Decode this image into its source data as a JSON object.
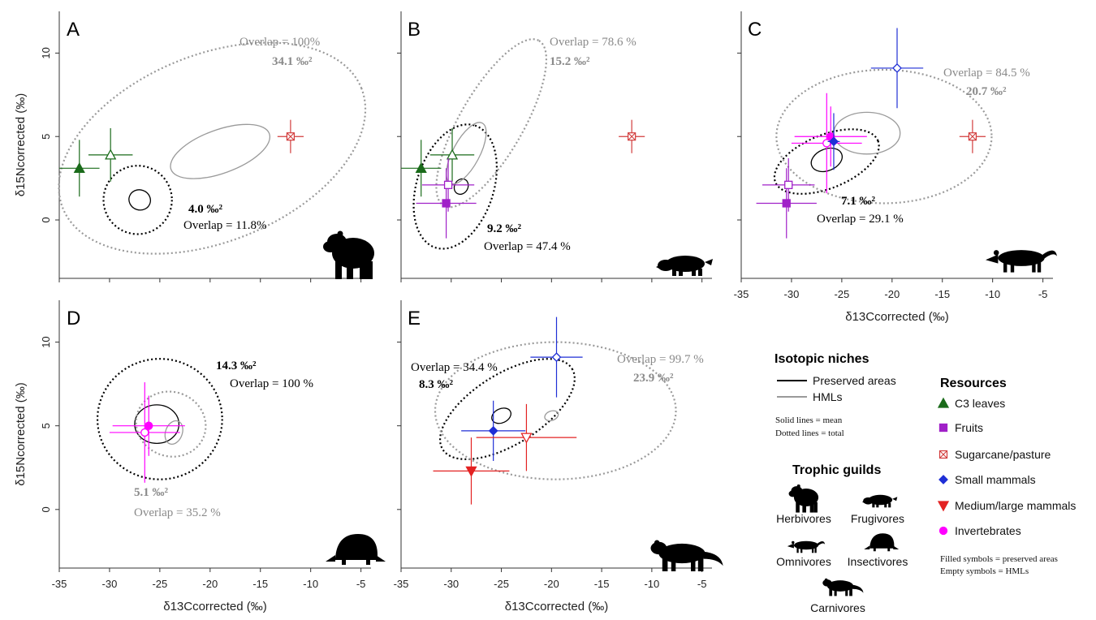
{
  "colors": {
    "c3": "#1a6b1a",
    "fruit": "#a020c8",
    "sugar": "#d23c3c",
    "small": "#1f2fd6",
    "medlarge": "#e32222",
    "invert": "#ff00ff",
    "preserved": "#000000",
    "hml": "#9a9a9a"
  },
  "axes": {
    "x_label": "δ13Ccorrected (‰)",
    "y_label": "δ15Ncorrected (‰)",
    "x_ticks": [
      "-35",
      "-30",
      "-25",
      "-20",
      "-15",
      "-10",
      "-5"
    ],
    "y_ticks": [
      "0",
      "5",
      "10"
    ],
    "xlim": [
      -35,
      -4
    ],
    "ylim": [
      -3.5,
      12.5
    ]
  },
  "chart_data": [
    {
      "type": "scatter",
      "panel": "A",
      "points": [
        {
          "resource": "c3",
          "group": "preserved",
          "x": -33,
          "y": 3.1,
          "xerr": 2,
          "yerr": 1.7
        },
        {
          "resource": "c3",
          "group": "hml",
          "x": -29.9,
          "y": 3.9,
          "xerr": 2.2,
          "yerr": 1.6
        },
        {
          "resource": "sugar",
          "group": "hml",
          "x": -12,
          "y": 5.0,
          "xerr": 1.3,
          "yerr": 1.0
        }
      ],
      "ellipses": [
        {
          "group": "preserved",
          "kind": "mean",
          "cx": -27,
          "cy": 1.2,
          "rx": 1.0,
          "ry": 0.65,
          "rot": 70
        },
        {
          "group": "preserved",
          "kind": "total",
          "cx": -27.2,
          "cy": 1.2,
          "rx": 3.4,
          "ry": 2.05,
          "rot": 0
        },
        {
          "group": "hml",
          "kind": "mean",
          "cx": -19,
          "cy": 4.1,
          "rx": 5.2,
          "ry": 1.3,
          "rot": 20
        },
        {
          "group": "hml",
          "kind": "total",
          "cx": -19.8,
          "cy": 4.3,
          "rx": 16,
          "ry": 5.6,
          "rot": 22
        }
      ],
      "annotations": {
        "hml_area": "34.1 ‰²",
        "hml_overlap": "Overlap = 100%",
        "pres_area": "4.0 ‰²",
        "pres_overlap": "Overlap = 11.8%"
      }
    },
    {
      "type": "scatter",
      "panel": "B",
      "points": [
        {
          "resource": "c3",
          "group": "preserved",
          "x": -33,
          "y": 3.1,
          "xerr": 2,
          "yerr": 1.7
        },
        {
          "resource": "c3",
          "group": "hml",
          "x": -29.9,
          "y": 3.9,
          "xerr": 2.2,
          "yerr": 1.6
        },
        {
          "resource": "fruit",
          "group": "preserved",
          "x": -30.5,
          "y": 1.0,
          "xerr": 3.0,
          "yerr": 2.1
        },
        {
          "resource": "fruit",
          "group": "hml",
          "x": -30.3,
          "y": 2.1,
          "xerr": 2.6,
          "yerr": 1.6
        },
        {
          "resource": "sugar",
          "group": "hml",
          "x": -12,
          "y": 5.0,
          "xerr": 1.3,
          "yerr": 1.0
        }
      ],
      "ellipses": [
        {
          "group": "preserved",
          "kind": "mean",
          "cx": -29,
          "cy": 2.0,
          "rx": 0.8,
          "ry": 0.4,
          "rot": 60
        },
        {
          "group": "preserved",
          "kind": "total",
          "cx": -29.6,
          "cy": 2.0,
          "rx": 6.4,
          "ry": 2.3,
          "rot": 72
        },
        {
          "group": "hml",
          "kind": "mean",
          "cx": -28.5,
          "cy": 4.0,
          "rx": 3.4,
          "ry": 0.8,
          "rot": 62
        },
        {
          "group": "hml",
          "kind": "total",
          "cx": -26,
          "cy": 5.8,
          "rx": 9.5,
          "ry": 1.9,
          "rot": 60
        }
      ],
      "annotations": {
        "hml_area": "15.2 ‰²",
        "hml_overlap": "Overlap = 78.6 %",
        "pres_area": "9.2 ‰²",
        "pres_overlap": "Overlap = 47.4 %"
      }
    },
    {
      "type": "scatter",
      "panel": "C",
      "points": [
        {
          "resource": "fruit",
          "group": "preserved",
          "x": -30.5,
          "y": 1.0,
          "xerr": 3.0,
          "yerr": 2.1
        },
        {
          "resource": "fruit",
          "group": "hml",
          "x": -30.3,
          "y": 2.1,
          "xerr": 2.6,
          "yerr": 1.6
        },
        {
          "resource": "invert",
          "group": "hml",
          "x": -26.5,
          "y": 4.6,
          "xerr": 3.5,
          "yerr": 3.0
        },
        {
          "resource": "invert",
          "group": "preserved",
          "x": -26.1,
          "y": 5.0,
          "xerr": 3.6,
          "yerr": 1.8
        },
        {
          "resource": "small",
          "group": "preserved",
          "x": -25.8,
          "y": 4.7,
          "xerr": 0.6,
          "yerr": 1.7
        },
        {
          "resource": "small",
          "group": "hml",
          "x": -19.5,
          "y": 9.1,
          "xerr": 2.6,
          "yerr": 2.4
        },
        {
          "resource": "sugar",
          "group": "hml",
          "x": -12,
          "y": 5.0,
          "xerr": 1.3,
          "yerr": 1.0
        }
      ],
      "ellipses": [
        {
          "group": "preserved",
          "kind": "mean",
          "cx": -26.5,
          "cy": 3.6,
          "rx": 1.6,
          "ry": 0.65,
          "rot": 22
        },
        {
          "group": "preserved",
          "kind": "total",
          "cx": -26.5,
          "cy": 3.5,
          "rx": 5.5,
          "ry": 1.6,
          "rot": 22
        },
        {
          "group": "hml",
          "kind": "mean",
          "cx": -22.5,
          "cy": 5.2,
          "rx": 3.3,
          "ry": 1.25,
          "rot": 0
        },
        {
          "group": "hml",
          "kind": "total",
          "cx": -20.8,
          "cy": 5.0,
          "rx": 10.7,
          "ry": 4.0,
          "rot": 0
        }
      ],
      "annotations": {
        "hml_area": "20.7 ‰²",
        "hml_overlap": "Overlap = 84.5 %",
        "pres_area": "7.1 ‰²",
        "pres_overlap": "Overlap = 29.1 %"
      }
    },
    {
      "type": "scatter",
      "panel": "D",
      "points": [
        {
          "resource": "invert",
          "group": "hml",
          "x": -26.5,
          "y": 4.6,
          "xerr": 3.5,
          "yerr": 3.0
        },
        {
          "resource": "invert",
          "group": "preserved",
          "x": -26.1,
          "y": 5.0,
          "xerr": 3.6,
          "yerr": 1.8
        }
      ],
      "ellipses": [
        {
          "group": "preserved",
          "kind": "mean",
          "cx": -25.3,
          "cy": 5.1,
          "rx": 2.2,
          "ry": 1.15,
          "rot": 0
        },
        {
          "group": "preserved",
          "kind": "total",
          "cx": -25,
          "cy": 5.4,
          "rx": 6.2,
          "ry": 3.6,
          "rot": 0
        },
        {
          "group": "hml",
          "kind": "mean",
          "cx": -23.6,
          "cy": 4.6,
          "rx": 1.2,
          "ry": 0.5,
          "rot": 70
        },
        {
          "group": "hml",
          "kind": "total",
          "cx": -23.9,
          "cy": 5.1,
          "rx": 3.2,
          "ry": 2.1,
          "rot": 70
        }
      ],
      "annotations": {
        "hml_area": "5.1 ‰²",
        "hml_overlap": "Overlap = 35.2 %",
        "pres_area": "14.3 ‰²",
        "pres_overlap": "Overlap = 100 %"
      }
    },
    {
      "type": "scatter",
      "panel": "E",
      "points": [
        {
          "resource": "small",
          "group": "hml",
          "x": -19.5,
          "y": 9.1,
          "xerr": 2.6,
          "yerr": 2.4
        },
        {
          "resource": "small",
          "group": "preserved",
          "x": -25.8,
          "y": 4.7,
          "xerr": 3.2,
          "yerr": 1.8
        },
        {
          "resource": "medlarge",
          "group": "hml",
          "x": -22.5,
          "y": 4.3,
          "xerr": 5.0,
          "yerr": 2.0
        },
        {
          "resource": "medlarge",
          "group": "preserved",
          "x": -28,
          "y": 2.3,
          "xerr": 3.8,
          "yerr": 2.0
        }
      ],
      "ellipses": [
        {
          "group": "preserved",
          "kind": "mean",
          "cx": -25,
          "cy": 5.6,
          "rx": 1.0,
          "ry": 0.42,
          "rot": 25
        },
        {
          "group": "preserved",
          "kind": "total",
          "cx": -24.4,
          "cy": 6.0,
          "rx": 7.6,
          "ry": 2.1,
          "rot": 32
        },
        {
          "group": "hml",
          "kind": "mean",
          "cx": -20,
          "cy": 5.6,
          "rx": 0.7,
          "ry": 0.28,
          "rot": 20
        },
        {
          "group": "hml",
          "kind": "total",
          "cx": -19.6,
          "cy": 5.9,
          "rx": 12,
          "ry": 4.1,
          "rot": 0
        }
      ],
      "annotations": {
        "hml_area": "23.9 ‰²",
        "hml_overlap": "Overlap = 99.7 %",
        "pres_area": "8.3 ‰²",
        "pres_overlap": "Overlap = 34.4 %"
      }
    }
  ],
  "legend": {
    "niches_title": "Isotopic niches",
    "preserved": "Preserved areas",
    "hml": "HMLs",
    "solid_note": "Solid lines = mean",
    "dotted_note": "Dotted lines = total",
    "resources_title": "Resources",
    "c3": "C3 leaves",
    "fruits": "Fruits",
    "sugarcane": "Sugarcane/pasture",
    "small": "Small mammals",
    "medlarge": "Medium/large mammals",
    "invert": "Invertebrates",
    "filled_note": "Filled symbols = preserved areas",
    "empty_note": "Empty symbols = HMLs",
    "guilds_title": "Trophic guilds",
    "herb": "Herbivores",
    "frug": "Frugivores",
    "omni": "Omnivores",
    "insect": "Insectivores",
    "carn": "Carnivores"
  }
}
